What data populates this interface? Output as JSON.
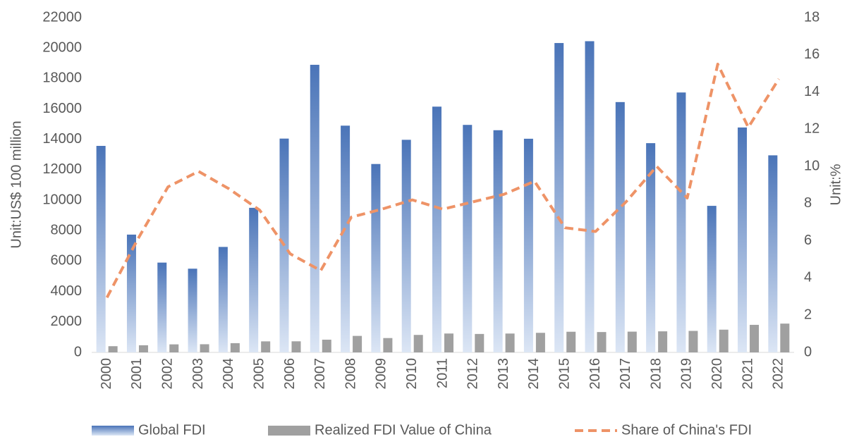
{
  "chart_data": {
    "type": "bar_line",
    "categories": [
      "2000",
      "2001",
      "2002",
      "2003",
      "2004",
      "2005",
      "2006",
      "2007",
      "2008",
      "2009",
      "2010",
      "2011",
      "2012",
      "2013",
      "2014",
      "2015",
      "2016",
      "2017",
      "2018",
      "2019",
      "2020",
      "2021",
      "2022"
    ],
    "series": [
      {
        "name": "Global FDI",
        "type": "bar",
        "color": "#4a74b8",
        "values": [
          13570,
          7740,
          5900,
          5500,
          6930,
          9500,
          14050,
          18900,
          14900,
          12380,
          13970,
          16150,
          14950,
          14600,
          14040,
          20330,
          20450,
          16450,
          13750,
          17080,
          9630,
          14780,
          12950
        ]
      },
      {
        "name": "Realized FDI Value of China",
        "type": "bar",
        "color": "#a0a0a0",
        "values": [
          407,
          469,
          527,
          535,
          606,
          724,
          727,
          835,
          1083,
          941,
          1147,
          1240,
          1211,
          1239,
          1285,
          1356,
          1337,
          1363,
          1383,
          1412,
          1493,
          1810,
          1891
        ]
      },
      {
        "name": "Share of China's FDI",
        "type": "line",
        "axis": "y2",
        "color": "#ee9367",
        "values": [
          2.95,
          6.06,
          8.9,
          9.73,
          8.79,
          7.65,
          5.3,
          4.4,
          7.27,
          7.7,
          8.2,
          7.7,
          8.1,
          8.5,
          9.2,
          6.7,
          6.5,
          8.1,
          10.0,
          8.3,
          15.5,
          12.1,
          14.7
        ]
      }
    ],
    "ylabel": "Unit:US$ 100 million",
    "y2label": "Unit:%",
    "ylim": [
      0,
      22000
    ],
    "yticks": [
      0,
      2000,
      4000,
      6000,
      8000,
      10000,
      12000,
      14000,
      16000,
      18000,
      20000,
      22000
    ],
    "y2lim": [
      0,
      18
    ],
    "y2ticks": [
      0,
      2,
      4,
      6,
      8,
      10,
      12,
      14,
      16,
      18
    ],
    "grid": false,
    "legend": "bottom"
  }
}
